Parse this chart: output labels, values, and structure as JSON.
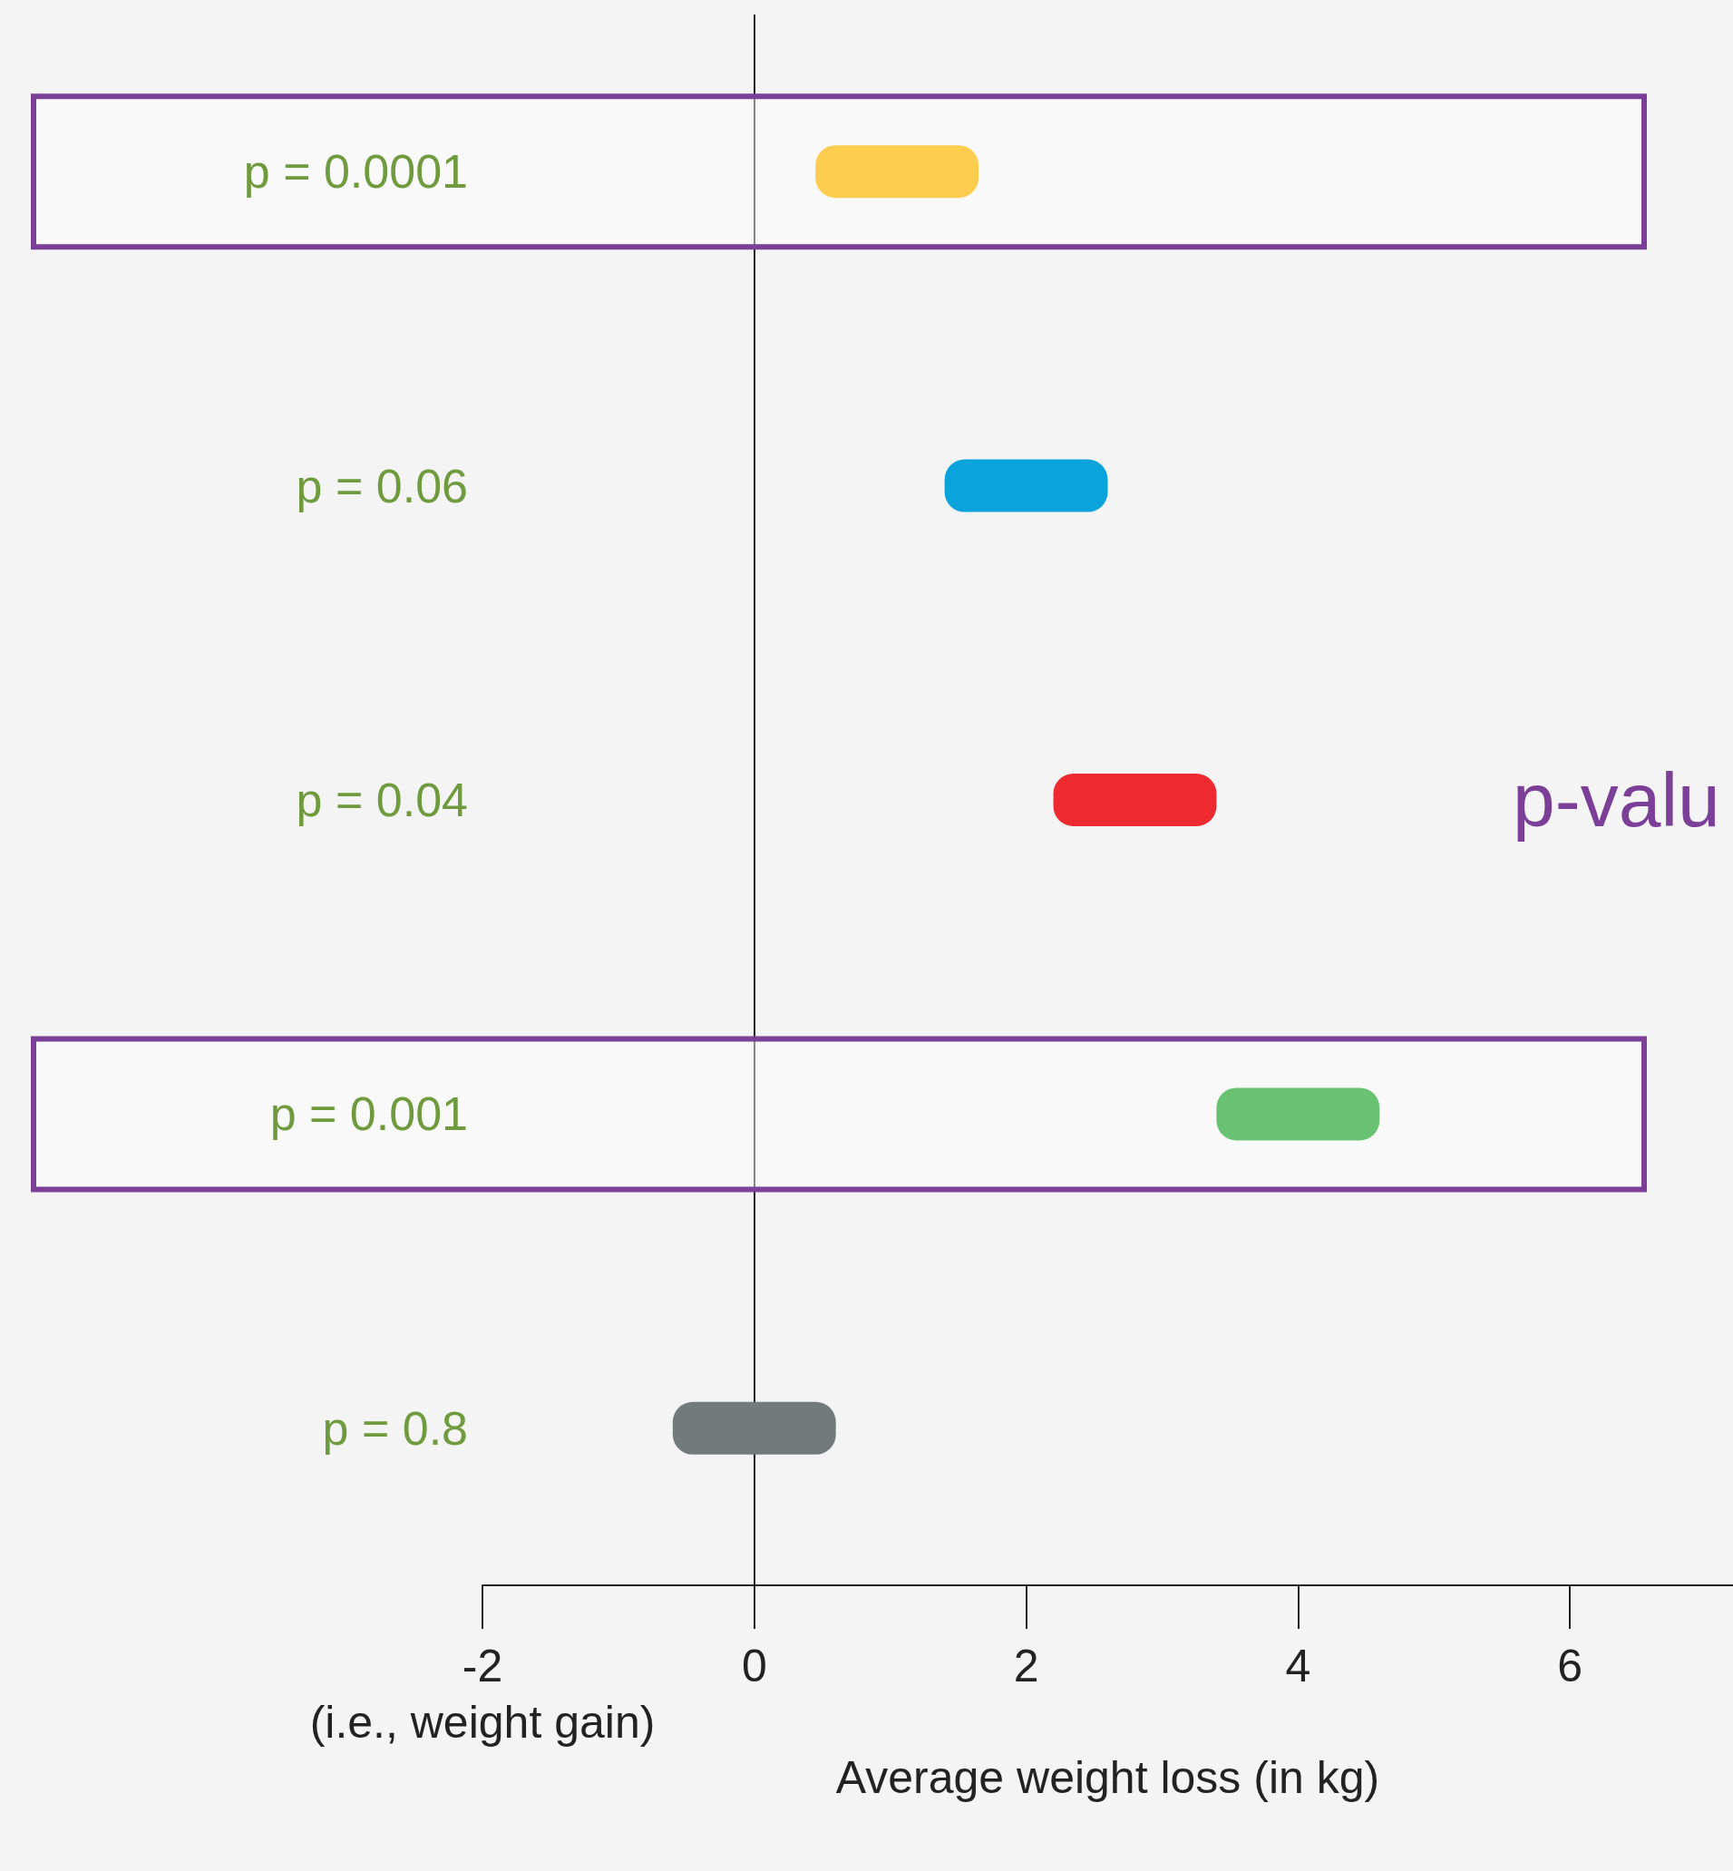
{
  "chart_data": {
    "type": "bar",
    "orientation": "horizontal",
    "categories": [
      "p = 0.0001",
      "p = 0.06",
      "p = 0.04",
      "p = 0.001",
      "p = 0.8"
    ],
    "base": [
      0.45,
      1.4,
      2.2,
      3.4,
      -0.6
    ],
    "values": [
      1.2,
      1.2,
      1.2,
      1.2,
      1.2
    ],
    "colors": [
      "#fdcd50",
      "#0ba3dc",
      "#ec2a2f",
      "#68c272",
      "#737a7c"
    ],
    "xlim": [
      -2,
      7.2
    ],
    "xticks": [
      {
        "value": -2,
        "label": "-2\n(i.e., weight gain)"
      },
      0,
      2,
      4,
      6
    ],
    "xlabel": "Average weight loss (in kg)",
    "ref_lines": [
      {
        "axis": "x",
        "value": 0,
        "color": "#222222"
      }
    ],
    "bands": [
      {
        "axis": "y",
        "from": "p = 0.0001",
        "to": "p = 0.0001",
        "color": "#7b3f98"
      },
      {
        "axis": "y",
        "from": "p = 0.001",
        "to": "p = 0.001",
        "color": "#7b3f98"
      }
    ],
    "annotations": [
      "p-valu"
    ],
    "grid": false
  }
}
